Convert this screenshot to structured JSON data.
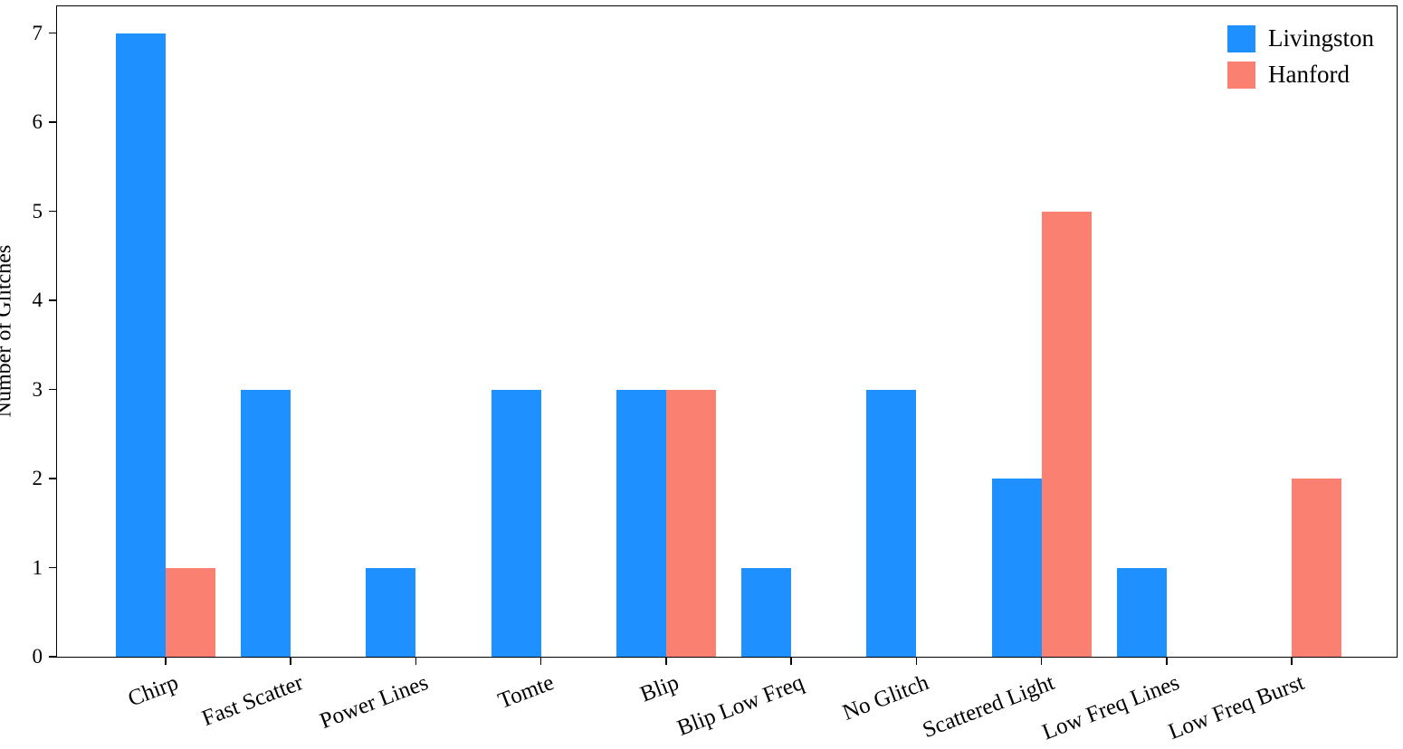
{
  "chart_data": {
    "type": "bar",
    "title": "",
    "xlabel": "",
    "ylabel": "Number of Glitches",
    "categories": [
      "Chirp",
      "Fast Scatter",
      "Power Lines",
      "Tomte",
      "Blip",
      "Blip Low Freq",
      "No Glitch",
      "Scattered Light",
      "Low Freq Lines",
      "Low Freq Burst"
    ],
    "series": [
      {
        "name": "Livingston",
        "color": "#1E90FF",
        "values": [
          7,
          3,
          1,
          3,
          3,
          1,
          3,
          2,
          1,
          0
        ]
      },
      {
        "name": "Hanford",
        "color": "#FA8072",
        "values": [
          1,
          0,
          0,
          0,
          3,
          0,
          0,
          5,
          0,
          2
        ]
      }
    ],
    "ylim": [
      0,
      7.3
    ],
    "yticks": [
      0,
      1,
      2,
      3,
      4,
      5,
      6,
      7
    ],
    "grid": false,
    "legend_position": "upper right"
  }
}
